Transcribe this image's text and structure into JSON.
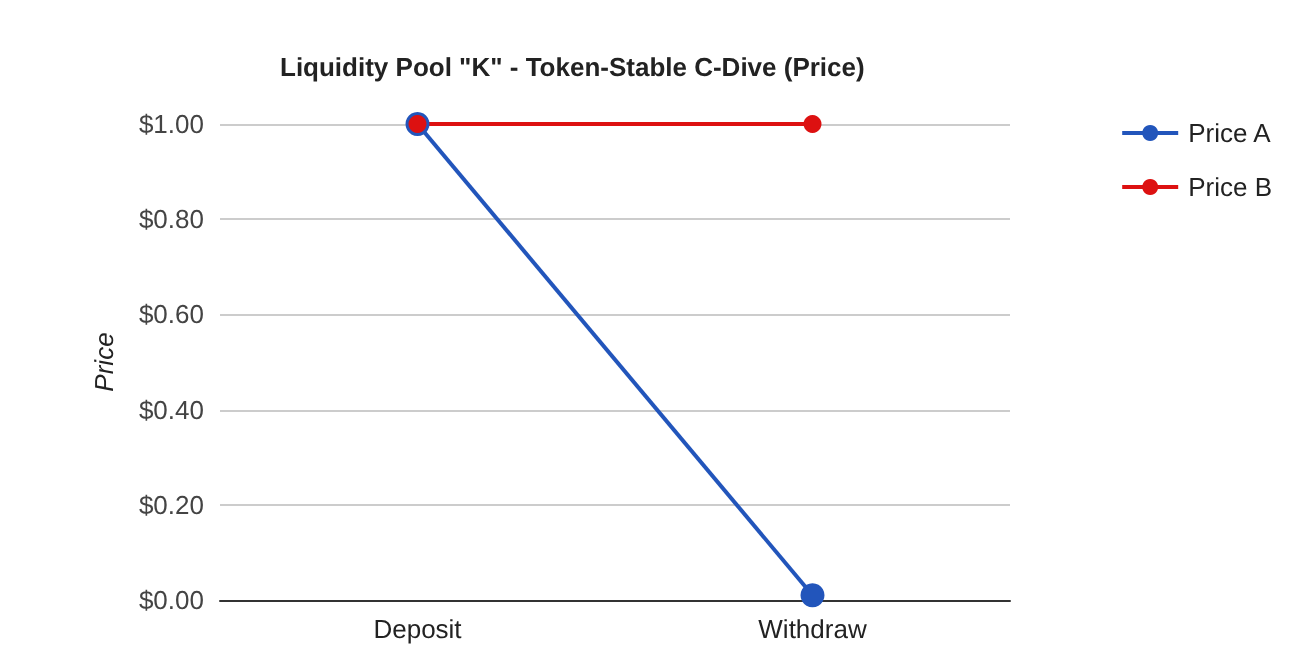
{
  "chart_data": {
    "type": "line",
    "title": "Liquidity Pool \"K\" - Token-Stable C-Dive (Price)",
    "ylabel": "Price",
    "categories": [
      "Deposit",
      "Withdraw"
    ],
    "series": [
      {
        "name": "Price A",
        "color": "#2255bb",
        "values": [
          1.0,
          0.01
        ]
      },
      {
        "name": "Price B",
        "color": "#dd1111",
        "values": [
          1.0,
          1.0
        ]
      }
    ],
    "ylim": [
      0,
      1
    ],
    "yticks": [
      {
        "value": 0,
        "label": "$0.00"
      },
      {
        "value": 0.2,
        "label": "$0.20"
      },
      {
        "value": 0.4,
        "label": "$0.40"
      },
      {
        "value": 0.6,
        "label": "$0.60"
      },
      {
        "value": 0.8,
        "label": "$0.80"
      },
      {
        "value": 1,
        "label": "$1.00"
      }
    ],
    "grid": true,
    "legend": "right",
    "marker": "circle",
    "line_style": "solid"
  }
}
